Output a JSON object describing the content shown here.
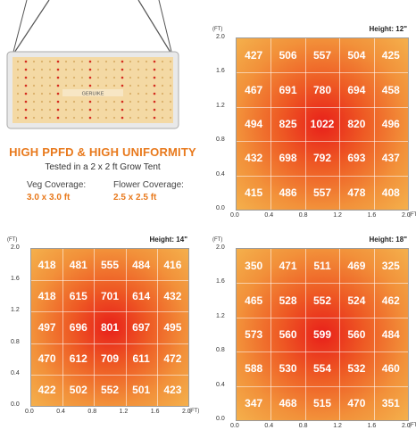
{
  "headline": "HIGH PPFD & HIGH UNIFORMITY",
  "subline": "Tested in a 2 x 2 ft Grow Tent",
  "veg": {
    "label": "Veg Coverage:",
    "value": "3.0 x 3.0 ft"
  },
  "flower": {
    "label": "Flower Coverage:",
    "value": "2.5 x 2.5 ft"
  },
  "lamp_brand": "GERUIKE",
  "panels": [
    {
      "title": "Height: 12\"",
      "unit": "(FT)",
      "xticks": [
        "0.0",
        "0.4",
        "0.8",
        "1.2",
        "1.6",
        "2.0"
      ],
      "yticks": [
        "2.0",
        "1.6",
        "1.2",
        "0.8",
        "0.4",
        "0.0"
      ],
      "grid": [
        [
          427,
          506,
          557,
          504,
          425
        ],
        [
          467,
          691,
          780,
          694,
          458
        ],
        [
          494,
          825,
          1022,
          820,
          496
        ],
        [
          432,
          698,
          792,
          693,
          437
        ],
        [
          415,
          486,
          557,
          478,
          408
        ]
      ]
    },
    {
      "title": "Height: 14\"",
      "unit": "(FT)",
      "xticks": [
        "0.0",
        "0.4",
        "0.8",
        "1.2",
        "1.6",
        "2.0"
      ],
      "yticks": [
        "2.0",
        "1.6",
        "1.2",
        "0.8",
        "0.4",
        "0.0"
      ],
      "grid": [
        [
          418,
          481,
          555,
          484,
          416
        ],
        [
          418,
          615,
          701,
          614,
          432
        ],
        [
          497,
          696,
          801,
          697,
          495
        ],
        [
          470,
          612,
          709,
          611,
          472
        ],
        [
          422,
          502,
          552,
          501,
          423
        ]
      ]
    },
    {
      "title": "Height: 18\"",
      "unit": "(FT)",
      "xticks": [
        "0.0",
        "0.4",
        "0.8",
        "1.2",
        "1.6",
        "2.0"
      ],
      "yticks": [
        "2.0",
        "1.6",
        "1.2",
        "0.8",
        "0.4",
        "0.0"
      ],
      "grid": [
        [
          350,
          471,
          511,
          469,
          325
        ],
        [
          465,
          528,
          552,
          524,
          462
        ],
        [
          573,
          560,
          599,
          560,
          484
        ],
        [
          588,
          530,
          554,
          532,
          460
        ],
        [
          347,
          468,
          515,
          470,
          351
        ]
      ]
    }
  ],
  "colors": {
    "accent": "#e8791c",
    "hot": "#e8201a",
    "cool": "#f2a93b"
  }
}
